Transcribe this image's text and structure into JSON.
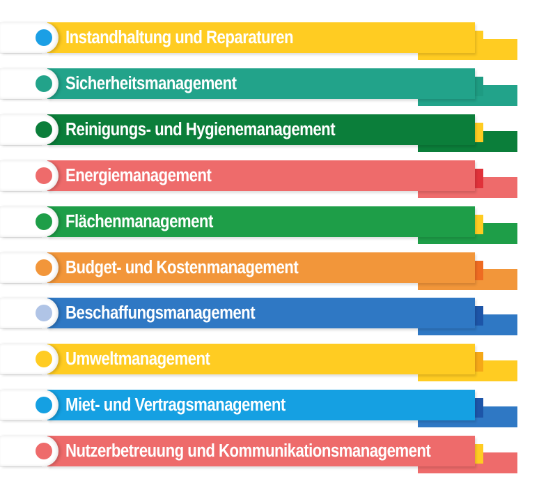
{
  "items": [
    {
      "label": "Instandhaltung und Reparaturen",
      "band": "#FFCC22",
      "back": "#FFCC22",
      "notch": "#FFCC22",
      "dot": "#1B9FE5"
    },
    {
      "label": "Sicherheitsmanagement",
      "band": "#22A38A",
      "back": "#22A38A",
      "notch": "#1E9B82",
      "dot": "#22A38A"
    },
    {
      "label": "Reinigungs- und Hygienemanagement",
      "band": "#0B7E3A",
      "back": "#0B7E3A",
      "notch": "#FFCC22",
      "dot": "#0B7E3A"
    },
    {
      "label": "Energiemanagement",
      "band": "#EE6B6B",
      "back": "#EE6B6B",
      "notch": "#E0323A",
      "dot": "#EE6B6B"
    },
    {
      "label": "Flächenmanagement",
      "band": "#1E9E48",
      "back": "#1E9E48",
      "notch": "#FFCC22",
      "dot": "#1E9E48"
    },
    {
      "label": "Budget- und Kostenmanagement",
      "band": "#F2963A",
      "back": "#F2963A",
      "notch": "#EE6B22",
      "dot": "#F2963A"
    },
    {
      "label": "Beschaffungsmanagement",
      "band": "#2F78C4",
      "back": "#2F78C4",
      "notch": "#1D55A8",
      "dot": "#B0C4E6"
    },
    {
      "label": "Umweltmanagement",
      "band": "#FFCC22",
      "back": "#FFCC22",
      "notch": "#F5A818",
      "dot": "#FFCC22"
    },
    {
      "label": "Miet- und Vertragsmanagement",
      "band": "#15A0E2",
      "back": "#2F78C4",
      "notch": "#1D55A8",
      "dot": "#15A0E2"
    },
    {
      "label": "Nutzerbetreuung und Kommunikationsmanagement",
      "band": "#EE6B6B",
      "back": "#EE6B6B",
      "notch": "#FFCC22",
      "dot": "#EE6B6B"
    }
  ]
}
